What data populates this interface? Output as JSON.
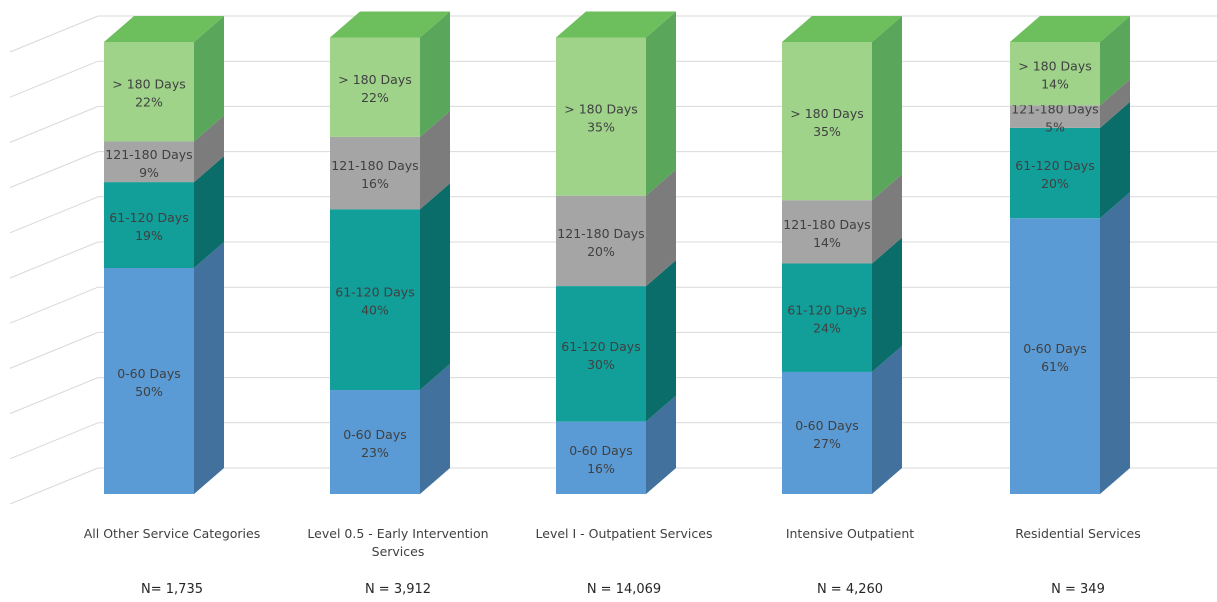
{
  "chart_data": {
    "type": "bar",
    "stacked": true,
    "style": "3d-stacked-percent",
    "ylim": [
      0,
      100
    ],
    "grid": true,
    "categories": [
      {
        "label_lines": [
          "All Other Service Categories"
        ],
        "n_label": "N= 1,735"
      },
      {
        "label_lines": [
          "Level 0.5 - Early Intervention",
          "Services"
        ],
        "n_label": "N = 3,912"
      },
      {
        "label_lines": [
          "Level I - Outpatient Services"
        ],
        "n_label": "N = 14,069"
      },
      {
        "label_lines": [
          "Intensive Outpatient"
        ],
        "n_label": "N  = 4,260"
      },
      {
        "label_lines": [
          "Residential Services"
        ],
        "n_label": "N = 349"
      }
    ],
    "series": [
      {
        "name": "0-60 Days",
        "values": [
          50,
          23,
          16,
          27,
          61
        ],
        "labels": [
          "50%",
          "23%",
          "16%",
          "27%",
          "61%"
        ],
        "color_front": "#5b9bd5",
        "color_side": "#41719c",
        "color_top": "#8cb8e3"
      },
      {
        "name": "61-120 Days",
        "values": [
          19,
          40,
          30,
          24,
          20
        ],
        "labels": [
          "19%",
          "40%",
          "30%",
          "24%",
          "20%"
        ],
        "color_front": "#129e99",
        "color_side": "#0b6d6a",
        "color_top": "#4dbcb8"
      },
      {
        "name": "121-180 Days",
        "values": [
          9,
          16,
          20,
          14,
          5
        ],
        "labels": [
          "9%",
          "16%",
          "20%",
          "14%",
          "5%"
        ],
        "color_front": "#a5a5a5",
        "color_side": "#7c7c7c",
        "color_top": "#c4c4c4"
      },
      {
        "name": "> 180 Days",
        "values": [
          22,
          22,
          35,
          35,
          14
        ],
        "labels": [
          "22%",
          "22%",
          "35%",
          "35%",
          "14%"
        ],
        "color_front": "#9fd38a",
        "color_side": "#5aa65a",
        "color_top": "#6cbf5c"
      }
    ],
    "label_color": "#404040"
  }
}
